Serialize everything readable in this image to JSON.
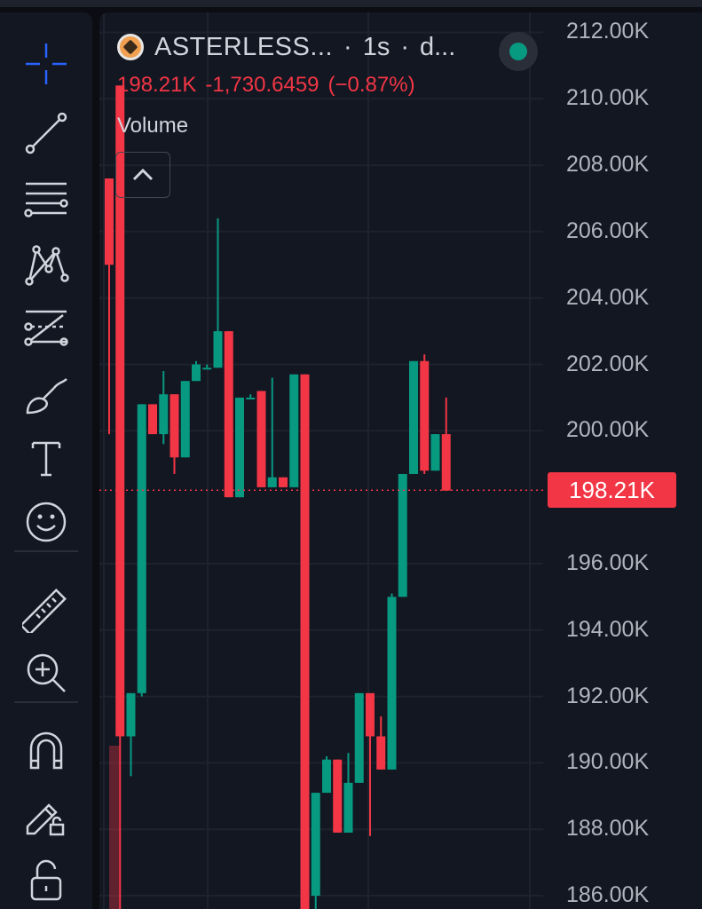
{
  "toolbar": {
    "tools": [
      {
        "name": "crosshair-icon",
        "color": "#2962ff"
      },
      {
        "name": "trend-line-icon"
      },
      {
        "name": "fib-retracement-icon"
      },
      {
        "name": "pattern-icon"
      },
      {
        "name": "forecast-projection-icon"
      },
      {
        "name": "brush-icon"
      },
      {
        "name": "text-icon"
      },
      {
        "name": "emoji-icon"
      },
      {
        "name": "ruler-icon"
      },
      {
        "name": "zoom-in-icon"
      },
      {
        "name": "magnet-icon"
      },
      {
        "name": "lock-drawings-icon"
      },
      {
        "name": "unlock-icon"
      }
    ]
  },
  "legend": {
    "symbol": "ASTERLESS...",
    "separator": "·",
    "interval": "1s",
    "exchange": "d...",
    "price": "198.21K",
    "change": "-1,730.6459",
    "change_pct": "(−0.87%)",
    "status_color": "#089981"
  },
  "volume_label": "Volume",
  "last_price_label": "198.21K",
  "colors": {
    "up": "#089981",
    "down": "#f23645",
    "background": "#131722",
    "grid": "#1e222d"
  },
  "chart_data": {
    "type": "candlestick",
    "y_axis": {
      "ticks": [
        "212.00K",
        "210.00K",
        "208.00K",
        "206.00K",
        "204.00K",
        "202.00K",
        "200.00K",
        "196.00K",
        "194.00K",
        "192.00K",
        "190.00K",
        "188.00K",
        "186.00K"
      ],
      "range": [
        185600,
        212600
      ],
      "unit": "K"
    },
    "last_price": 198210,
    "candles": [
      {
        "o": 207600,
        "h": 207600,
        "l": 199900,
        "c": 205000
      },
      {
        "o": 210400,
        "h": 210400,
        "l": 185400,
        "c": 190800
      },
      {
        "o": 190800,
        "h": 192100,
        "l": 189600,
        "c": 192100
      },
      {
        "o": 192100,
        "h": 200800,
        "l": 192000,
        "c": 200800
      },
      {
        "o": 200800,
        "h": 200800,
        "l": 199900,
        "c": 199900
      },
      {
        "o": 199900,
        "h": 201800,
        "l": 199600,
        "c": 201100
      },
      {
        "o": 201100,
        "h": 201100,
        "l": 198700,
        "c": 199200
      },
      {
        "o": 199200,
        "h": 201500,
        "l": 199200,
        "c": 201500
      },
      {
        "o": 201500,
        "h": 202100,
        "l": 201500,
        "c": 202000
      },
      {
        "o": 201900,
        "h": 202000,
        "l": 201900,
        "c": 201900
      },
      {
        "o": 201900,
        "h": 206400,
        "l": 201900,
        "c": 203000
      },
      {
        "o": 203000,
        "h": 203000,
        "l": 198000,
        "c": 198000
      },
      {
        "o": 198000,
        "h": 201000,
        "l": 198000,
        "c": 201000
      },
      {
        "o": 201000,
        "h": 201100,
        "l": 201000,
        "c": 201000
      },
      {
        "o": 201200,
        "h": 201200,
        "l": 198300,
        "c": 198300
      },
      {
        "o": 198300,
        "h": 201600,
        "l": 198300,
        "c": 198600
      },
      {
        "o": 198600,
        "h": 198600,
        "l": 198300,
        "c": 198300
      },
      {
        "o": 198300,
        "h": 201700,
        "l": 198300,
        "c": 201700
      },
      {
        "o": 201700,
        "h": 201700,
        "l": 185400,
        "c": 185400
      },
      {
        "o": 186000,
        "h": 189100,
        "l": 185400,
        "c": 189100
      },
      {
        "o": 189100,
        "h": 190200,
        "l": 189100,
        "c": 190100
      },
      {
        "o": 190100,
        "h": 190100,
        "l": 187900,
        "c": 187900
      },
      {
        "o": 187900,
        "h": 190300,
        "l": 187900,
        "c": 189400
      },
      {
        "o": 189400,
        "h": 192100,
        "l": 189400,
        "c": 192100
      },
      {
        "o": 192100,
        "h": 192100,
        "l": 187800,
        "c": 190800
      },
      {
        "o": 190800,
        "h": 191400,
        "l": 189800,
        "c": 189800
      },
      {
        "o": 189800,
        "h": 195100,
        "l": 189800,
        "c": 195000
      },
      {
        "o": 195000,
        "h": 198700,
        "l": 195000,
        "c": 198700
      },
      {
        "o": 198700,
        "h": 202100,
        "l": 198700,
        "c": 202100
      },
      {
        "o": 202100,
        "h": 202300,
        "l": 198700,
        "c": 198800
      },
      {
        "o": 198800,
        "h": 199900,
        "l": 198800,
        "c": 199900
      },
      {
        "o": 199900,
        "h": 201000,
        "l": 198200,
        "c": 198200
      }
    ]
  }
}
